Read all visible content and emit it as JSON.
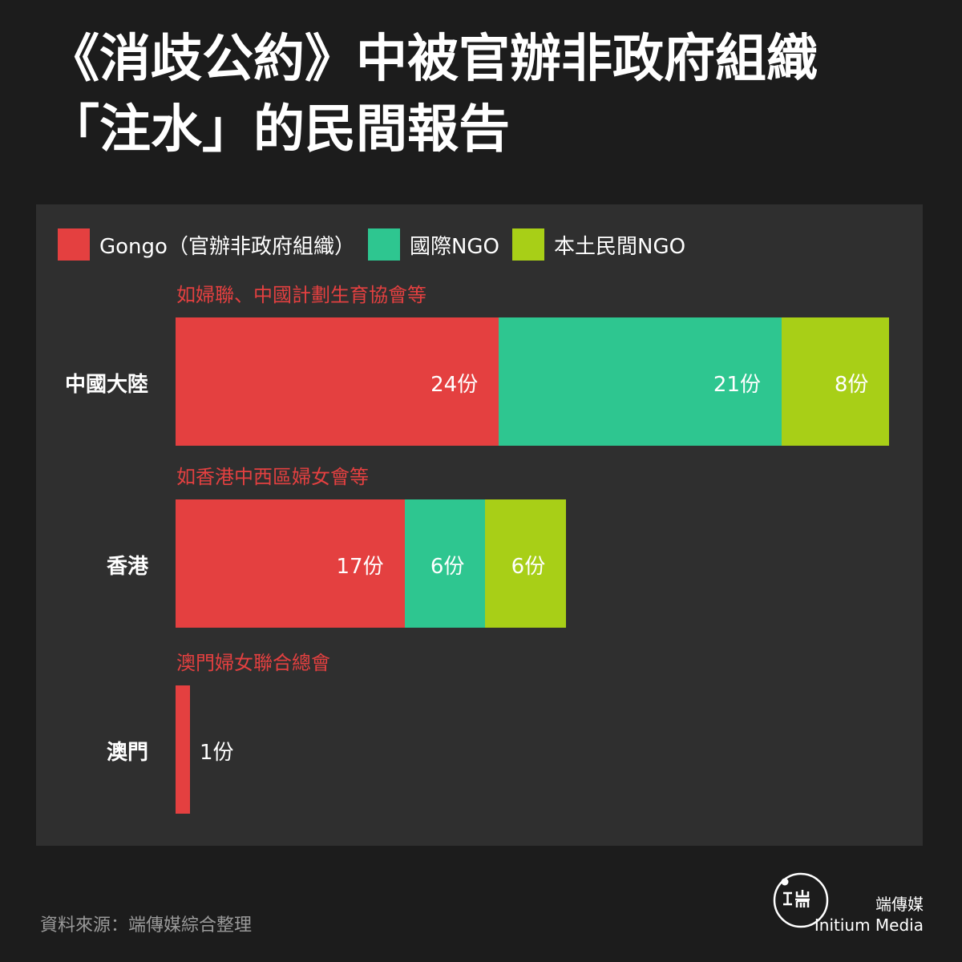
{
  "title_lines": [
    "《消歧公約》中被官辦非政府組織",
    "「注水」的民間報告"
  ],
  "colors": {
    "gongo": "#e44040",
    "intl": "#2ec690",
    "local": "#a8cf17",
    "background": "#1c1c1c",
    "panel": "#2f2f2f"
  },
  "chart_data": {
    "type": "bar",
    "orientation": "horizontal",
    "stacked": true,
    "legend_position": "top-left",
    "unit_suffix": "份",
    "categories": [
      "中國大陸",
      "香港",
      "澳門"
    ],
    "series": [
      {
        "name": "Gongo（官辦非政府組織）",
        "color": "#e44040",
        "values": [
          24,
          17,
          1
        ]
      },
      {
        "name": "國際NGO",
        "color": "#2ec690",
        "values": [
          21,
          6,
          0
        ]
      },
      {
        "name": "本土民間NGO",
        "color": "#a8cf17",
        "values": [
          8,
          6,
          0
        ]
      }
    ],
    "data_labels": [
      [
        "24份",
        "21份",
        "8份"
      ],
      [
        "17份",
        "6份",
        "6份"
      ],
      [
        "1份",
        "",
        ""
      ]
    ],
    "annotations": [
      "如婦聯、中國計劃生育協會等",
      "如香港中西區婦女會等",
      "澳門婦女聯合總會"
    ]
  },
  "source": "資料來源：端傳媒綜合整理",
  "brand": {
    "name_cn": "端傳媒",
    "name_en": "Initium Media"
  }
}
